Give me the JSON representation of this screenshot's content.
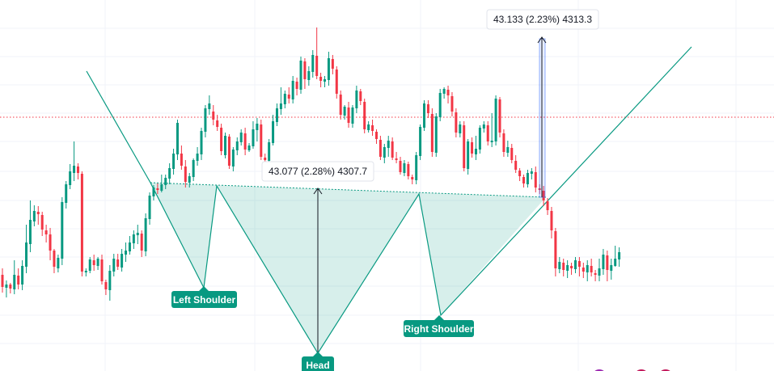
{
  "colors": {
    "up": "#089981",
    "down": "#f23645",
    "pattern": "#089981",
    "pattern_fill": "#089981",
    "label_bg": "#089981",
    "grid": "#f0f3fa",
    "price_line": "#f23645"
  },
  "chart_data": {
    "type": "candlestick",
    "title": "",
    "xlabel": "",
    "ylabel": "",
    "grid": true,
    "current_price_line": "dotted",
    "pattern": {
      "name": "inverse head and shoulders",
      "annotations": [
        {
          "id": "left-shoulder",
          "text": "Left Shoulder"
        },
        {
          "id": "head",
          "text": "Head"
        },
        {
          "id": "right-shoulder",
          "text": "Right Shoulder"
        }
      ]
    },
    "measurements": [
      {
        "id": "neckline-to-head",
        "text": "43.077 (2.28%) 4307.7"
      },
      {
        "id": "breakout-move",
        "text": "43.133 (2.23%) 4313.3"
      }
    ],
    "candles": [
      [
        120,
        105,
        98,
        128
      ],
      [
        104,
        108,
        92,
        113
      ],
      [
        108,
        103,
        97,
        110
      ],
      [
        102,
        120,
        96,
        138
      ],
      [
        119,
        108,
        102,
        128
      ],
      [
        108,
        131,
        101,
        138
      ],
      [
        130,
        160,
        122,
        182
      ],
      [
        158,
        188,
        148,
        212
      ],
      [
        186,
        199,
        180,
        206
      ],
      [
        198,
        195,
        182,
        205
      ],
      [
        194,
        176,
        168,
        198
      ],
      [
        175,
        170,
        160,
        182
      ],
      [
        170,
        150,
        138,
        178
      ],
      [
        150,
        130,
        122,
        152
      ],
      [
        128,
        141,
        123,
        145
      ],
      [
        140,
        210,
        132,
        216
      ],
      [
        209,
        232,
        202,
        236
      ],
      [
        231,
        248,
        226,
        257
      ],
      [
        246,
        255,
        236,
        285
      ],
      [
        254,
        246,
        238,
        258
      ],
      [
        245,
        124,
        118,
        248
      ],
      [
        123,
        125,
        118,
        128
      ],
      [
        125,
        139,
        122,
        142
      ],
      [
        138,
        132,
        125,
        145
      ],
      [
        131,
        140,
        126,
        142
      ],
      [
        139,
        112,
        108,
        145
      ],
      [
        111,
        102,
        95,
        114
      ],
      [
        101,
        125,
        88,
        132
      ],
      [
        124,
        140,
        118,
        146
      ],
      [
        139,
        130,
        126,
        146
      ],
      [
        129,
        146,
        124,
        152
      ],
      [
        145,
        150,
        136,
        160
      ],
      [
        149,
        160,
        145,
        168
      ],
      [
        159,
        170,
        152,
        175
      ],
      [
        169,
        172,
        158,
        182
      ],
      [
        171,
        150,
        142,
        175
      ],
      [
        149,
        190,
        143,
        196
      ],
      [
        189,
        218,
        182,
        222
      ],
      [
        217,
        228,
        212,
        231
      ],
      [
        227,
        225,
        220,
        233
      ],
      [
        224,
        232,
        222,
        244
      ],
      [
        231,
        240,
        226,
        244
      ],
      [
        239,
        252,
        232,
        258
      ],
      [
        251,
        270,
        244,
        276
      ],
      [
        269,
        308,
        262,
        312
      ],
      [
        270,
        255,
        250,
        280
      ],
      [
        254,
        235,
        228,
        262
      ],
      [
        234,
        242,
        228,
        246
      ],
      [
        241,
        262,
        236,
        264
      ],
      [
        261,
        270,
        255,
        278
      ],
      [
        269,
        298,
        262,
        302
      ],
      [
        297,
        326,
        290,
        330
      ],
      [
        325,
        332,
        318,
        342
      ],
      [
        322,
        312,
        305,
        330
      ],
      [
        311,
        303,
        298,
        318
      ],
      [
        302,
        273,
        268,
        307
      ],
      [
        268,
        292,
        264,
        296
      ],
      [
        291,
        255,
        251,
        294
      ],
      [
        254,
        275,
        248,
        278
      ],
      [
        274,
        285,
        268,
        290
      ],
      [
        284,
        296,
        280,
        300
      ],
      [
        295,
        275,
        268,
        302
      ],
      [
        274,
        280,
        272,
        283
      ],
      [
        279,
        300,
        276,
        310
      ],
      [
        299,
        307,
        285,
        314
      ],
      [
        306,
        266,
        262,
        312
      ],
      [
        265,
        262,
        256,
        270
      ],
      [
        261,
        284,
        258,
        288
      ],
      [
        283,
        310,
        280,
        318
      ],
      [
        309,
        326,
        304,
        332
      ],
      [
        325,
        332,
        318,
        352
      ],
      [
        331,
        344,
        326,
        348
      ],
      [
        343,
        338,
        332,
        352
      ],
      [
        337,
        360,
        332,
        366
      ],
      [
        359,
        350,
        342,
        364
      ],
      [
        349,
        385,
        344,
        390
      ],
      [
        384,
        362,
        350,
        388
      ],
      [
        361,
        372,
        354,
        378
      ],
      [
        371,
        392,
        364,
        398
      ],
      [
        391,
        366,
        362,
        426
      ],
      [
        365,
        360,
        352,
        370
      ],
      [
        359,
        362,
        352,
        366
      ],
      [
        361,
        388,
        354,
        396
      ],
      [
        387,
        375,
        368,
        392
      ],
      [
        374,
        344,
        338,
        378
      ],
      [
        343,
        318,
        312,
        348
      ],
      [
        317,
        328,
        312,
        330
      ],
      [
        327,
        308,
        302,
        334
      ],
      [
        307,
        327,
        302,
        330
      ],
      [
        326,
        348,
        320,
        354
      ],
      [
        347,
        335,
        330,
        350
      ],
      [
        334,
        300,
        295,
        338
      ],
      [
        299,
        306,
        296,
        310
      ],
      [
        305,
        298,
        292,
        312
      ],
      [
        297,
        288,
        282,
        300
      ],
      [
        287,
        266,
        262,
        292
      ],
      [
        265,
        278,
        258,
        282
      ],
      [
        277,
        286,
        266,
        292
      ],
      [
        285,
        265,
        262,
        290
      ],
      [
        264,
        262,
        258,
        272
      ],
      [
        261,
        247,
        244,
        266
      ],
      [
        246,
        258,
        242,
        262
      ],
      [
        257,
        242,
        238,
        260
      ],
      [
        241,
        238,
        232,
        244
      ],
      [
        237,
        268,
        232,
        272
      ],
      [
        267,
        303,
        262,
        306
      ],
      [
        302,
        332,
        298,
        336
      ],
      [
        331,
        320,
        314,
        336
      ],
      [
        319,
        272,
        266,
        326
      ],
      [
        271,
        316,
        266,
        320
      ],
      [
        315,
        345,
        310,
        350
      ],
      [
        344,
        350,
        338,
        352
      ],
      [
        349,
        342,
        332,
        354
      ],
      [
        341,
        322,
        316,
        346
      ],
      [
        321,
        296,
        290,
        326
      ],
      [
        295,
        306,
        290,
        310
      ],
      [
        305,
        252,
        248,
        310
      ],
      [
        251,
        285,
        244,
        288
      ],
      [
        284,
        270,
        265,
        290
      ],
      [
        269,
        276,
        262,
        292
      ],
      [
        275,
        302,
        270,
        305
      ],
      [
        301,
        306,
        296,
        310
      ],
      [
        305,
        285,
        280,
        310
      ],
      [
        284,
        286,
        278,
        320
      ],
      [
        285,
        338,
        280,
        342
      ],
      [
        337,
        296,
        290,
        340
      ],
      [
        295,
        272,
        266,
        300
      ],
      [
        271,
        278,
        266,
        286
      ],
      [
        277,
        262,
        258,
        282
      ],
      [
        261,
        250,
        246,
        268
      ],
      [
        249,
        242,
        236,
        252
      ],
      [
        241,
        233,
        228,
        244
      ],
      [
        232,
        246,
        228,
        250
      ],
      [
        245,
        248,
        238,
        252
      ],
      [
        247,
        228,
        222,
        254
      ],
      [
        227,
        225,
        220,
        232
      ],
      [
        224,
        212,
        205,
        230
      ],
      [
        211,
        200,
        194,
        215
      ],
      [
        199,
        175,
        165,
        204
      ],
      [
        174,
        128,
        118,
        178
      ],
      [
        127,
        136,
        122,
        142
      ],
      [
        135,
        126,
        118,
        140
      ],
      [
        125,
        132,
        116,
        138
      ],
      [
        131,
        128,
        120,
        135
      ],
      [
        127,
        138,
        122,
        142
      ],
      [
        137,
        130,
        118,
        142
      ],
      [
        129,
        124,
        116,
        135
      ],
      [
        123,
        132,
        112,
        138
      ],
      [
        131,
        123,
        118,
        140
      ],
      [
        122,
        120,
        112,
        126
      ],
      [
        119,
        128,
        112,
        140
      ],
      [
        127,
        145,
        120,
        152
      ],
      [
        144,
        126,
        112,
        150
      ],
      [
        125,
        132,
        114,
        140
      ],
      [
        131,
        140,
        130,
        156
      ],
      [
        139,
        148,
        130,
        154
      ]
    ]
  }
}
